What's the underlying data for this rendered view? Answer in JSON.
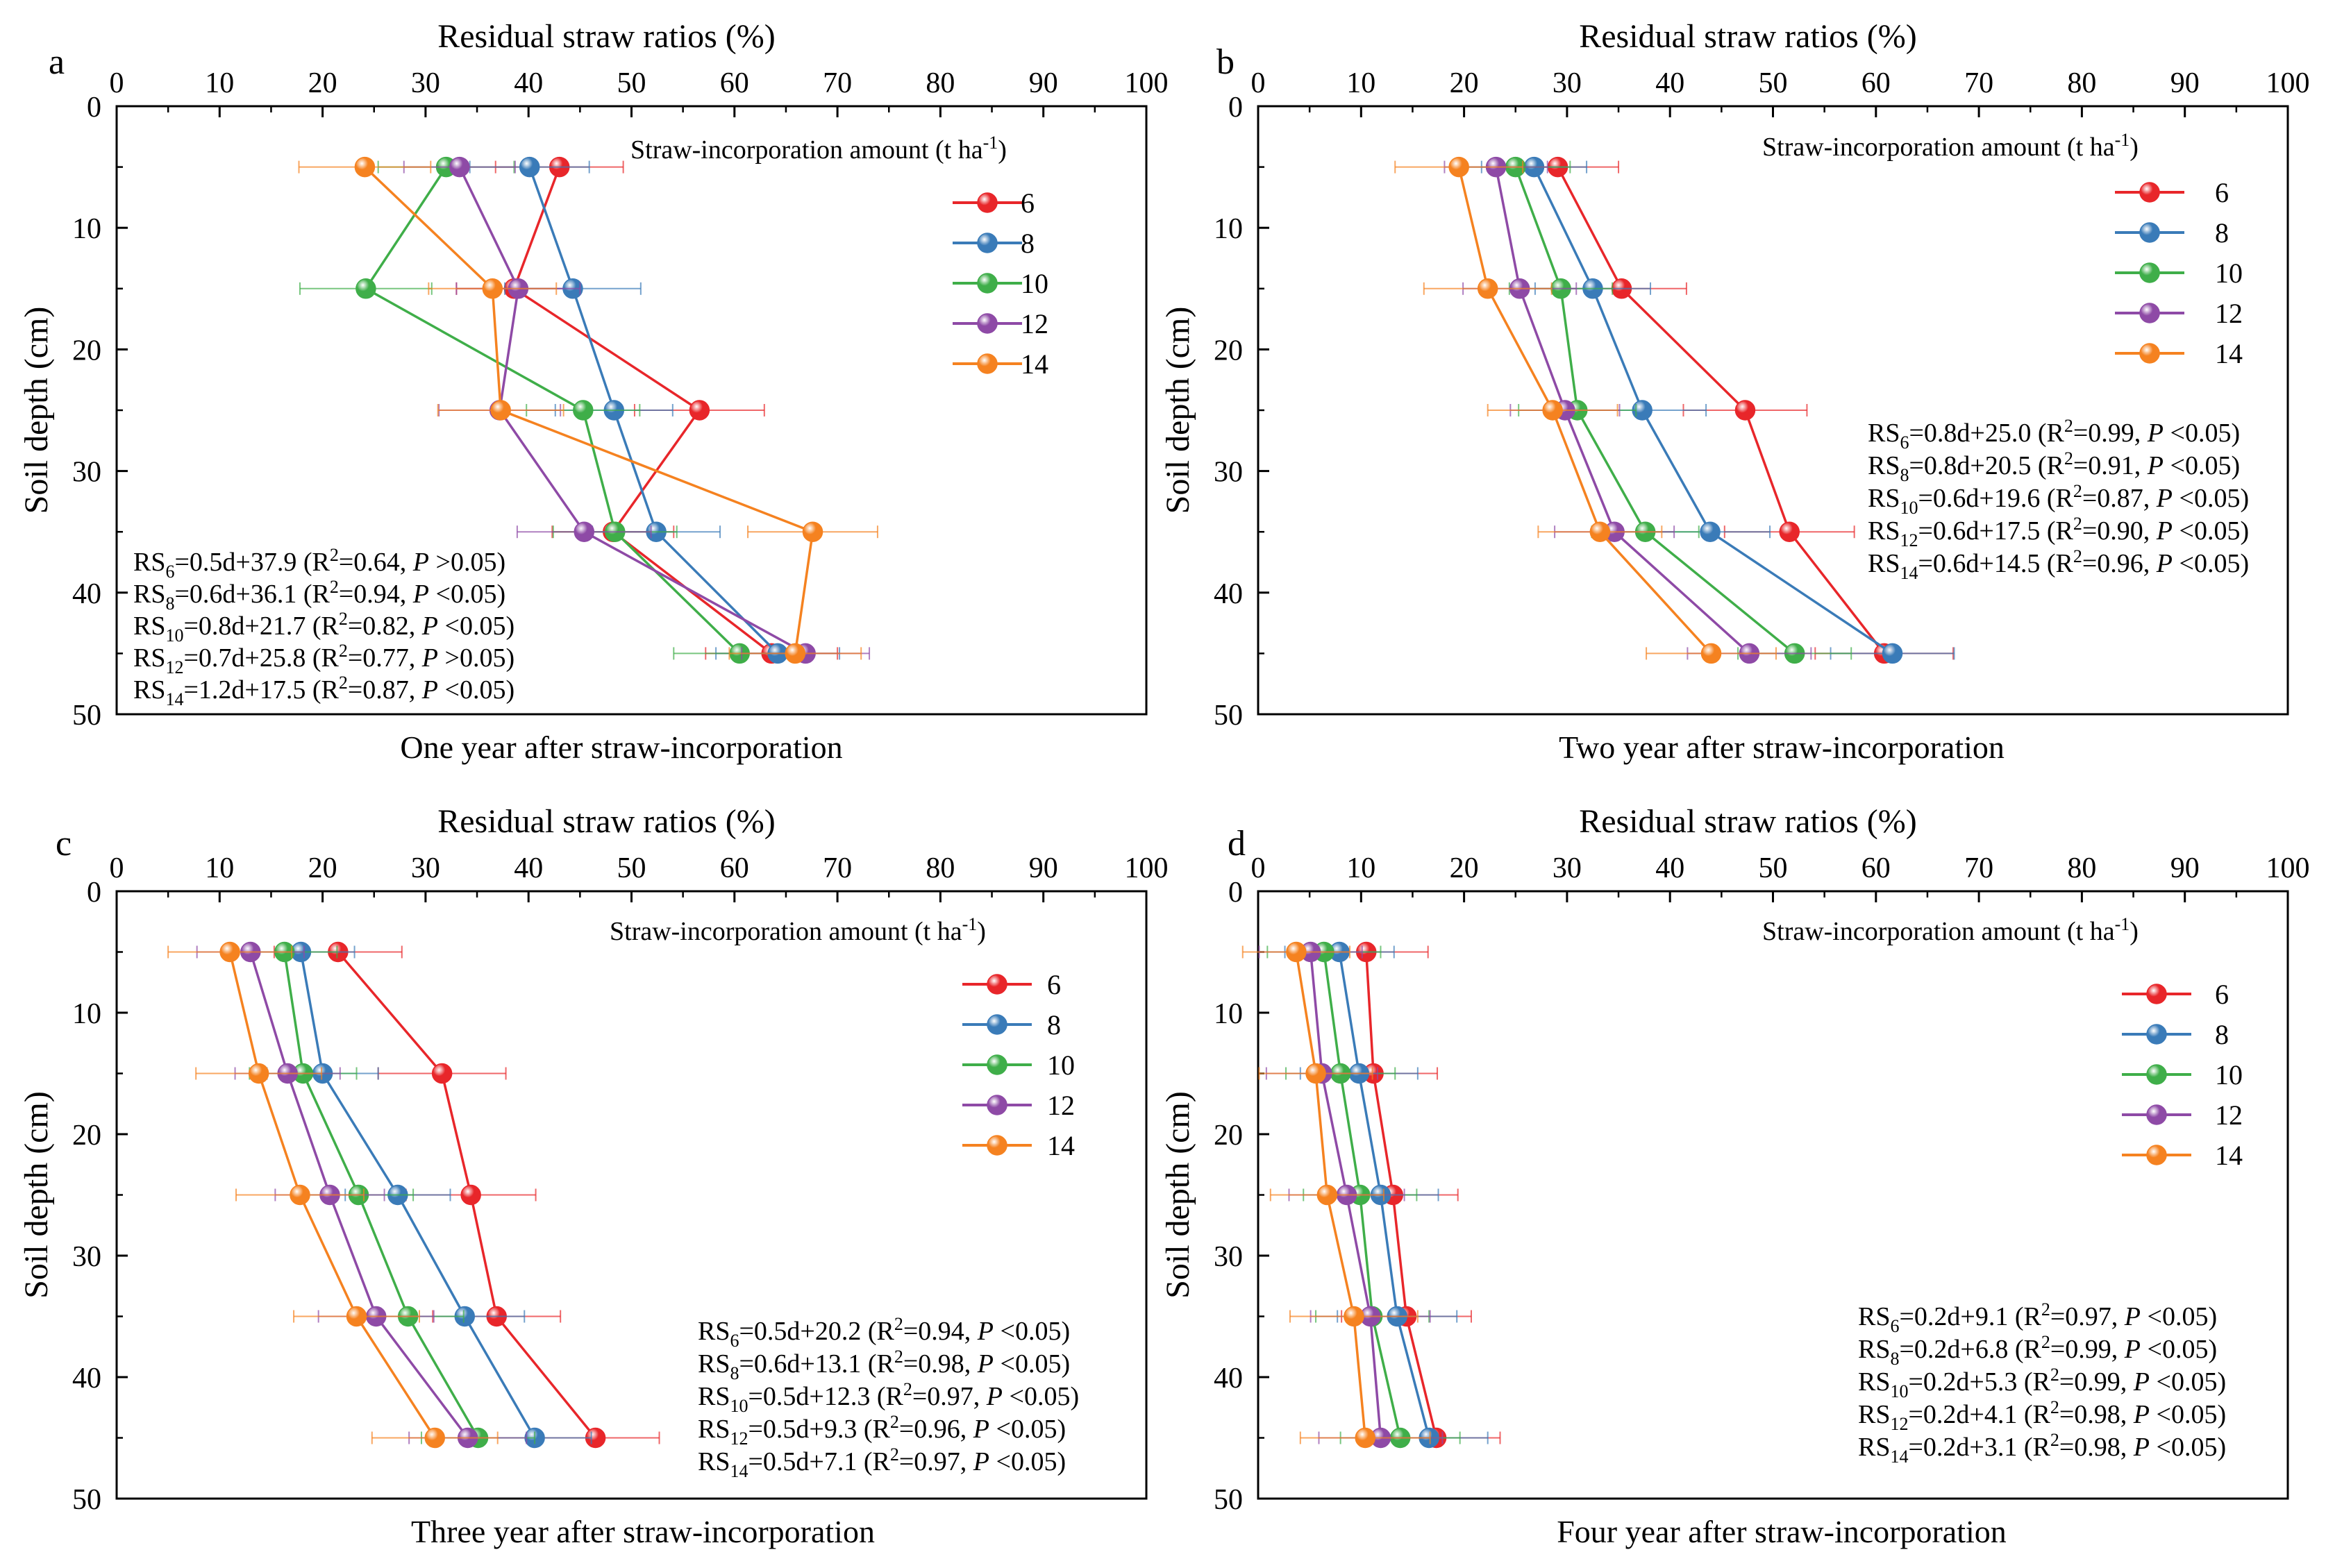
{
  "figure": {
    "series_names": [
      "6",
      "8",
      "10",
      "12",
      "14"
    ],
    "series_colors": [
      "#e8262a",
      "#3a7bb8",
      "#3fae49",
      "#8e4aa6",
      "#f58220"
    ],
    "legend_title_main": "Straw-incorporation amount (t ha",
    "legend_title_sup": "-1",
    "legend_title_end": ")",
    "ylabel": "Soil depth (cm)",
    "xlabel": "Residual straw ratios (%)",
    "xticks": [
      0,
      10,
      20,
      30,
      40,
      50,
      60,
      70,
      80,
      90,
      100
    ],
    "yticks": [
      0,
      10,
      20,
      30,
      40,
      50
    ],
    "xlim": [
      0,
      100
    ],
    "ylim": [
      0,
      50
    ],
    "depths": [
      5,
      15,
      25,
      35,
      45
    ]
  },
  "chart_data": [
    {
      "type": "line",
      "panel_letter": "a",
      "title": "One year after straw-incorporation",
      "xlabel": "Residual straw ratios (%)",
      "ylabel": "Soil depth (cm)",
      "xlim": [
        0,
        100
      ],
      "ylim": [
        0,
        50
      ],
      "y_inverted": true,
      "legend": "top-right",
      "equations_position": "bottom-left",
      "series": [
        {
          "name": "6",
          "x": [
            43.0,
            38.6,
            56.6,
            48.2,
            63.6
          ],
          "err": [
            6.2,
            5.6,
            6.3,
            5.9,
            6.4
          ]
        },
        {
          "name": "8",
          "x": [
            40.1,
            44.3,
            48.3,
            52.4,
            64.2
          ],
          "err": [
            5.8,
            6.6,
            5.7,
            6.2,
            6.0
          ]
        },
        {
          "name": "10",
          "x": [
            32.0,
            24.2,
            45.3,
            48.4,
            60.5
          ],
          "err": [
            6.6,
            6.4,
            5.5,
            6.0,
            6.4
          ]
        },
        {
          "name": "12",
          "x": [
            33.3,
            39.0,
            37.2,
            45.4,
            66.9
          ],
          "err": [
            5.4,
            6.0,
            5.9,
            6.5,
            6.2
          ]
        },
        {
          "name": "14",
          "x": [
            24.1,
            36.5,
            37.3,
            67.6,
            65.9
          ],
          "err": [
            6.4,
            6.2,
            6.1,
            6.3,
            6.4
          ]
        }
      ],
      "equations": [
        {
          "sub": "6",
          "body": "=0.5d+37.9 (R",
          "sup": "2",
          "stat": "=0.64, ",
          "p": "P",
          "tail": " >0.05)"
        },
        {
          "sub": "8",
          "body": "=0.6d+36.1 (R",
          "sup": "2",
          "stat": "=0.94, ",
          "p": "P",
          "tail": " <0.05)"
        },
        {
          "sub": "10",
          "body": "=0.8d+21.7 (R",
          "sup": "2",
          "stat": "=0.82, ",
          "p": "P",
          "tail": " <0.05)"
        },
        {
          "sub": "12",
          "body": "=0.7d+25.8 (R",
          "sup": "2",
          "stat": "=0.77, ",
          "p": "P",
          "tail": " >0.05)"
        },
        {
          "sub": "14",
          "body": "=1.2d+17.5 (R",
          "sup": "2",
          "stat": "=0.87, ",
          "p": "P",
          "tail": " <0.05)"
        }
      ]
    },
    {
      "type": "line",
      "panel_letter": "b",
      "title": "Two year after straw-incorporation",
      "xlabel": "Residual straw ratios (%)",
      "ylabel": "Soil depth (cm)",
      "xlim": [
        0,
        100
      ],
      "ylim": [
        0,
        50
      ],
      "y_inverted": true,
      "legend": "top-right",
      "equations_position": "middle-right",
      "series": [
        {
          "name": "6",
          "x": [
            29.1,
            35.3,
            47.3,
            51.6,
            60.8
          ],
          "err": [
            5.9,
            6.3,
            6.0,
            6.3,
            6.7
          ]
        },
        {
          "name": "8",
          "x": [
            26.8,
            32.5,
            37.3,
            43.9,
            61.6
          ],
          "err": [
            5.1,
            5.6,
            6.2,
            5.8,
            6.0
          ]
        },
        {
          "name": "10",
          "x": [
            25.0,
            29.4,
            31.0,
            37.6,
            52.1
          ],
          "err": [
            5.3,
            5.0,
            5.7,
            5.2,
            5.5
          ]
        },
        {
          "name": "12",
          "x": [
            23.1,
            25.4,
            29.8,
            34.6,
            47.7
          ],
          "err": [
            5.0,
            5.5,
            5.3,
            5.8,
            6.0
          ]
        },
        {
          "name": "14",
          "x": [
            19.5,
            22.3,
            28.6,
            33.2,
            44.0
          ],
          "err": [
            6.2,
            6.2,
            6.3,
            6.0,
            6.3
          ]
        }
      ],
      "equations": [
        {
          "sub": "6",
          "body": "=0.8d+25.0 (R",
          "sup": "2",
          "stat": "=0.99, ",
          "p": "P",
          "tail": " <0.05)"
        },
        {
          "sub": "8",
          "body": "=0.8d+20.5 (R",
          "sup": "2",
          "stat": "=0.91, ",
          "p": "P",
          "tail": " <0.05)"
        },
        {
          "sub": "10",
          "body": "=0.6d+19.6 (R",
          "sup": "2",
          "stat": "=0.87, ",
          "p": "P",
          "tail": " <0.05)"
        },
        {
          "sub": "12",
          "body": "=0.6d+17.5 (R",
          "sup": "2",
          "stat": "=0.90, ",
          "p": "P",
          "tail": " <0.05)"
        },
        {
          "sub": "14",
          "body": "=0.6d+14.5 (R",
          "sup": "2",
          "stat": "=0.96, ",
          "p": "P",
          "tail": " <0.05)"
        }
      ]
    },
    {
      "type": "line",
      "panel_letter": "c",
      "title": "Three year after straw-incorporation",
      "xlabel": "Residual straw ratios (%)",
      "ylabel": "Soil depth (cm)",
      "xlim": [
        0,
        100
      ],
      "ylim": [
        0,
        50
      ],
      "y_inverted": true,
      "legend": "top-right",
      "equations_position": "bottom-right",
      "series": [
        {
          "name": "6",
          "x": [
            21.5,
            31.6,
            34.4,
            36.9,
            46.5
          ],
          "err": [
            6.2,
            6.2,
            6.3,
            6.2,
            6.2
          ]
        },
        {
          "name": "8",
          "x": [
            17.9,
            20.0,
            27.3,
            33.8,
            40.6
          ],
          "err": [
            5.2,
            5.4,
            5.1,
            5.8,
            5.5
          ]
        },
        {
          "name": "10",
          "x": [
            16.3,
            18.1,
            23.5,
            28.3,
            35.1
          ],
          "err": [
            5.1,
            5.2,
            5.3,
            5.4,
            5.5
          ]
        },
        {
          "name": "12",
          "x": [
            13.0,
            16.6,
            20.7,
            25.2,
            34.1
          ],
          "err": [
            5.2,
            5.1,
            5.3,
            5.6,
            5.7
          ]
        },
        {
          "name": "14",
          "x": [
            11.0,
            13.8,
            17.8,
            23.3,
            30.9
          ],
          "err": [
            6.0,
            6.1,
            6.2,
            6.1,
            6.1
          ]
        }
      ],
      "equations": [
        {
          "sub": "6",
          "body": "=0.5d+20.2 (R",
          "sup": "2",
          "stat": "=0.94, ",
          "p": "P",
          "tail": " <0.05)"
        },
        {
          "sub": "8",
          "body": "=0.6d+13.1 (R",
          "sup": "2",
          "stat": "=0.98, ",
          "p": "P",
          "tail": " <0.05)"
        },
        {
          "sub": "10",
          "body": "=0.5d+12.3 (R",
          "sup": "2",
          "stat": "=0.97, ",
          "p": "P",
          "tail": " <0.05)"
        },
        {
          "sub": "12",
          "body": "=0.5d+9.3 (R",
          "sup": "2",
          "stat": "=0.96, ",
          "p": "P",
          "tail": " <0.05)"
        },
        {
          "sub": "14",
          "body": "=0.5d+7.1 (R",
          "sup": "2",
          "stat": "=0.97, ",
          "p": "P",
          "tail": " <0.05)"
        }
      ]
    },
    {
      "type": "line",
      "panel_letter": "d",
      "title": "Four year after straw-incorporation",
      "xlabel": "Residual straw ratios (%)",
      "ylabel": "Soil depth (cm)",
      "xlim": [
        0,
        100
      ],
      "ylim": [
        0,
        50
      ],
      "y_inverted": true,
      "legend": "top-right",
      "equations_position": "bottom-right",
      "series": [
        {
          "name": "6",
          "x": [
            10.5,
            11.2,
            13.1,
            14.4,
            17.3
          ],
          "err": [
            6.0,
            6.2,
            6.3,
            6.3,
            6.2
          ]
        },
        {
          "name": "8",
          "x": [
            7.9,
            9.8,
            11.9,
            13.5,
            16.6
          ],
          "err": [
            5.3,
            5.7,
            5.6,
            5.8,
            5.7
          ]
        },
        {
          "name": "10",
          "x": [
            6.4,
            8.0,
            9.9,
            11.1,
            13.8
          ],
          "err": [
            5.5,
            5.3,
            5.5,
            5.5,
            5.8
          ]
        },
        {
          "name": "12",
          "x": [
            5.1,
            6.2,
            8.6,
            10.9,
            11.9
          ],
          "err": [
            5.0,
            5.4,
            5.6,
            5.8,
            6.0
          ]
        },
        {
          "name": "14",
          "x": [
            3.7,
            5.6,
            6.7,
            9.3,
            10.4
          ],
          "err": [
            5.2,
            5.5,
            5.5,
            6.2,
            6.3
          ]
        }
      ],
      "equations": [
        {
          "sub": "6",
          "body": "=0.2d+9.1 (R",
          "sup": "2",
          "stat": "=0.97, ",
          "p": "P",
          "tail": " <0.05)"
        },
        {
          "sub": "8",
          "body": "=0.2d+6.8 (R",
          "sup": "2",
          "stat": "=0.99, ",
          "p": "P",
          "tail": " <0.05)"
        },
        {
          "sub": "10",
          "body": "=0.2d+5.3 (R",
          "sup": "2",
          "stat": "=0.99, ",
          "p": "P",
          "tail": " <0.05)"
        },
        {
          "sub": "12",
          "body": "=0.2d+4.1 (R",
          "sup": "2",
          "stat": "=0.98, ",
          "p": "P",
          "tail": " <0.05)"
        },
        {
          "sub": "14",
          "body": "=0.2d+3.1 (R",
          "sup": "2",
          "stat": "=0.98, ",
          "p": "P",
          "tail": " <0.05)"
        }
      ]
    }
  ]
}
